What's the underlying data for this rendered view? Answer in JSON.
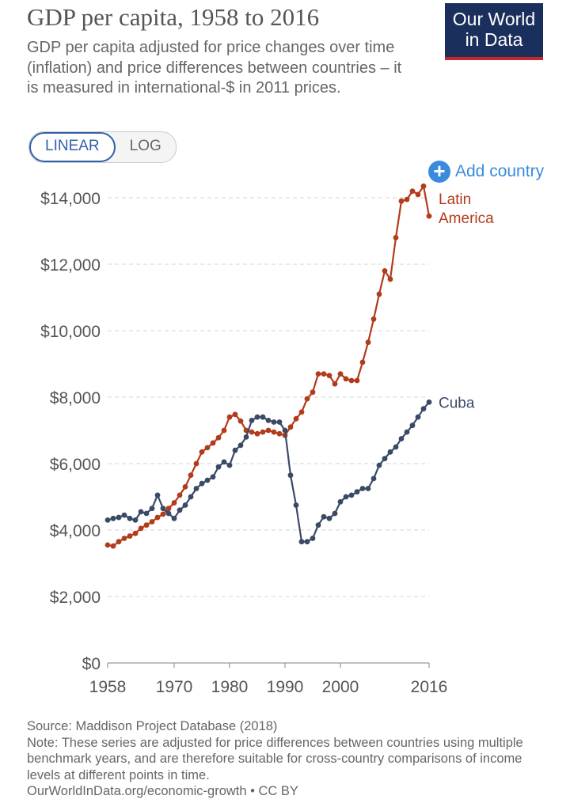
{
  "header": {
    "title": "GDP per capita, 1958 to 2016",
    "subtitle": "GDP per capita adjusted for price changes over time (inflation) and price differences between countries – it is measured in international-$ in 2011 prices.",
    "logo_line1": "Our World",
    "logo_line2": "in Data"
  },
  "controls": {
    "linear_label": "LINEAR",
    "log_label": "LOG",
    "add_country_label": "Add country"
  },
  "colors": {
    "latin_america": "#b23b1b",
    "cuba": "#3a4a66",
    "accent": "#3b8bdc",
    "grid": "#dddddd"
  },
  "chart_data": {
    "type": "line",
    "title": "GDP per capita, 1958 to 2016",
    "ylim": [
      0,
      14500
    ],
    "xlim": [
      1958,
      2016
    ],
    "y_ticks": [
      0,
      2000,
      4000,
      6000,
      8000,
      10000,
      12000,
      14000
    ],
    "y_tick_labels": [
      "$0",
      "$2,000",
      "$4,000",
      "$6,000",
      "$8,000",
      "$10,000",
      "$12,000",
      "$14,000"
    ],
    "x_ticks": [
      1958,
      1970,
      1980,
      1990,
      2000,
      2016
    ],
    "x_tick_labels": [
      "1958",
      "1970",
      "1980",
      "1990",
      "2000",
      "2016"
    ],
    "grid": "horizontal dashed",
    "x": [
      1958,
      1959,
      1960,
      1961,
      1962,
      1963,
      1964,
      1965,
      1966,
      1967,
      1968,
      1969,
      1970,
      1971,
      1972,
      1973,
      1974,
      1975,
      1976,
      1977,
      1978,
      1979,
      1980,
      1981,
      1982,
      1983,
      1984,
      1985,
      1986,
      1987,
      1988,
      1989,
      1990,
      1991,
      1992,
      1993,
      1994,
      1995,
      1996,
      1997,
      1998,
      1999,
      2000,
      2001,
      2002,
      2003,
      2004,
      2005,
      2006,
      2007,
      2008,
      2009,
      2010,
      2011,
      2012,
      2013,
      2014,
      2015,
      2016
    ],
    "series": [
      {
        "name": "Latin America",
        "label_lines": [
          "Latin",
          "America"
        ],
        "values": [
          3550,
          3520,
          3650,
          3750,
          3820,
          3900,
          4050,
          4150,
          4250,
          4380,
          4480,
          4650,
          4820,
          5050,
          5300,
          5650,
          6000,
          6350,
          6480,
          6620,
          6780,
          7000,
          7400,
          7480,
          7280,
          7000,
          6950,
          6900,
          6950,
          7000,
          6950,
          6900,
          6850,
          7100,
          7350,
          7550,
          7950,
          8150,
          8700,
          8700,
          8650,
          8400,
          8700,
          8550,
          8500,
          8500,
          9050,
          9650,
          10350,
          11100,
          11800,
          11550,
          12800,
          13900,
          13950,
          14200,
          14100,
          14350,
          13450
        ]
      },
      {
        "name": "Cuba",
        "label_lines": [
          "Cuba"
        ],
        "values": [
          4300,
          4350,
          4380,
          4450,
          4350,
          4300,
          4550,
          4500,
          4650,
          5050,
          4650,
          4500,
          4350,
          4600,
          4750,
          5000,
          5250,
          5400,
          5500,
          5600,
          5900,
          6050,
          5950,
          6400,
          6550,
          6800,
          7300,
          7400,
          7400,
          7300,
          7250,
          7250,
          7000,
          5650,
          4750,
          3650,
          3650,
          3750,
          4150,
          4400,
          4350,
          4500,
          4850,
          5000,
          5050,
          5150,
          5250,
          5250,
          5550,
          5950,
          6150,
          6350,
          6500,
          6750,
          6950,
          7150,
          7400,
          7650,
          7850
        ]
      }
    ]
  },
  "footer": {
    "source": "Source: Maddison Project Database (2018)",
    "note": "Note: These series are adjusted for price differences between countries using multiple benchmark years, and are therefore suitable for cross-country comparisons of income levels at different points in time.",
    "link": "OurWorldInData.org/economic-growth • CC BY"
  }
}
